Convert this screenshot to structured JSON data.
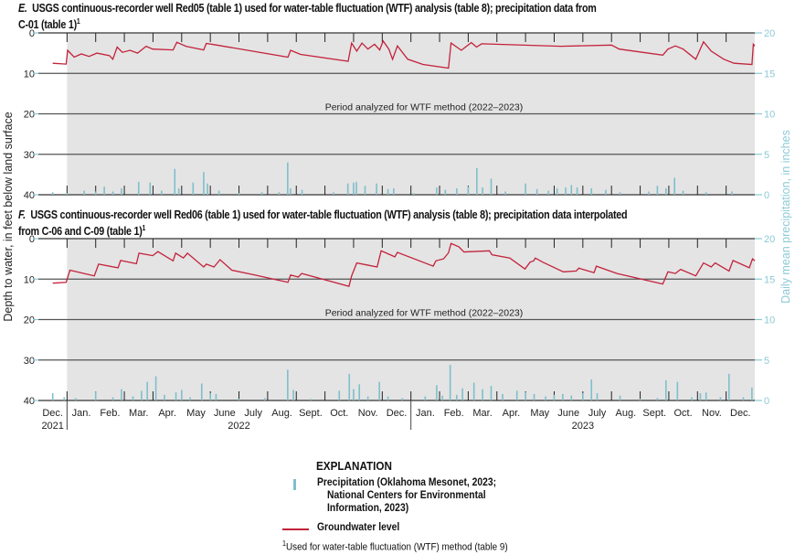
{
  "colors": {
    "groundwater": "#c3223b",
    "precip": "#7fbfcb",
    "shade": "#e4e4e4",
    "grid": "#555555",
    "axis_right": "#8ccad6"
  },
  "footnote_mark": "1",
  "shared": {
    "left_axis_label": "Depth to water, in feet below land surface",
    "right_axis_label": "Daily mean precipitation, in inches",
    "months": [
      "Dec.",
      "Jan.",
      "Feb.",
      "Mar.",
      "Apr.",
      "May",
      "June",
      "July",
      "Aug.",
      "Sept.",
      "Oct.",
      "Nov.",
      "Dec.",
      "Jan.",
      "Feb.",
      "Mar.",
      "Apr.",
      "May",
      "June",
      "July",
      "Aug.",
      "Sept.",
      "Oct.",
      "Nov.",
      "Dec."
    ],
    "years": [
      "2021",
      "2022",
      "2023"
    ],
    "x_unit": "months since Dec. 1, 2021",
    "xlim": [
      0,
      25
    ],
    "left_ticks": [
      "0",
      "10",
      "20",
      "30",
      "40"
    ],
    "right_ticks": [
      "20",
      "15",
      "10",
      "5",
      "0"
    ],
    "ylim_left": [
      0,
      40
    ],
    "ylim_right": [
      0,
      20
    ],
    "wtf_period_start": 1,
    "wtf_period_end": 25
  },
  "chart_data": [
    {
      "type": "line",
      "panel": "E.",
      "title_line1": "USGS continuous-recorder well Red05 (table 1) used for water-table fluctuation (WTF) analysis (table 8); precipitation data from",
      "title_line2": "C-01 (table 1)",
      "annotation": "Period analyzed for WTF method (2022–2023)",
      "groundwater": [
        [
          0.5,
          7.5
        ],
        [
          0.97,
          7.7
        ],
        [
          1.02,
          4.3
        ],
        [
          1.25,
          6.0
        ],
        [
          1.5,
          5.2
        ],
        [
          1.77,
          5.8
        ],
        [
          2.04,
          5.0
        ],
        [
          2.48,
          5.6
        ],
        [
          2.6,
          6.5
        ],
        [
          2.75,
          3.5
        ],
        [
          2.93,
          4.8
        ],
        [
          3.2,
          4.3
        ],
        [
          3.46,
          5.0
        ],
        [
          3.76,
          3.3
        ],
        [
          3.99,
          4.0
        ],
        [
          4.7,
          4.2
        ],
        [
          4.83,
          2.3
        ],
        [
          5.15,
          3.3
        ],
        [
          5.77,
          4.2
        ],
        [
          5.86,
          2.6
        ],
        [
          6.13,
          2.9
        ],
        [
          8.71,
          6.0
        ],
        [
          8.8,
          4.3
        ],
        [
          9.15,
          5.3
        ],
        [
          10.81,
          7.0
        ],
        [
          10.93,
          2.5
        ],
        [
          11.11,
          4.5
        ],
        [
          11.29,
          2.5
        ],
        [
          11.5,
          4.0
        ],
        [
          11.73,
          2.8
        ],
        [
          11.91,
          4.2
        ],
        [
          12.03,
          2.0
        ],
        [
          12.23,
          4.0
        ],
        [
          12.36,
          6.5
        ],
        [
          12.53,
          3.2
        ],
        [
          12.89,
          6.5
        ],
        [
          13.42,
          7.8
        ],
        [
          14.31,
          8.7
        ],
        [
          14.4,
          2.5
        ],
        [
          14.76,
          4.3
        ],
        [
          15.11,
          2.4
        ],
        [
          15.29,
          3.5
        ],
        [
          15.47,
          2.7
        ],
        [
          18.23,
          3.3
        ],
        [
          20.0,
          3.0
        ],
        [
          20.27,
          4.0
        ],
        [
          21.79,
          5.5
        ],
        [
          21.97,
          4.0
        ],
        [
          22.23,
          3.2
        ],
        [
          22.5,
          4.0
        ],
        [
          22.94,
          6.5
        ],
        [
          23.21,
          2.2
        ],
        [
          23.48,
          4.5
        ],
        [
          23.92,
          6.5
        ],
        [
          24.28,
          7.5
        ],
        [
          24.9,
          7.8
        ],
        [
          24.95,
          2.8
        ],
        [
          25.0,
          3.2
        ]
      ],
      "precipitation": [
        [
          0.5,
          0.3
        ],
        [
          1.0,
          0.2
        ],
        [
          1.6,
          0.5
        ],
        [
          2.0,
          0.4
        ],
        [
          2.3,
          1.0
        ],
        [
          2.6,
          0.4
        ],
        [
          2.9,
          0.8
        ],
        [
          3.5,
          1.6
        ],
        [
          3.9,
          1.5
        ],
        [
          4.3,
          0.5
        ],
        [
          4.76,
          3.2
        ],
        [
          4.9,
          0.8
        ],
        [
          5.4,
          1.5
        ],
        [
          5.77,
          2.8
        ],
        [
          5.9,
          1.4
        ],
        [
          6.3,
          0.5
        ],
        [
          7.0,
          0.2
        ],
        [
          7.8,
          0.3
        ],
        [
          8.4,
          0.3
        ],
        [
          8.7,
          4.0
        ],
        [
          8.8,
          0.8
        ],
        [
          9.2,
          0.6
        ],
        [
          10.3,
          0.3
        ],
        [
          10.8,
          1.4
        ],
        [
          11.0,
          1.5
        ],
        [
          11.1,
          1.6
        ],
        [
          11.4,
          1.1
        ],
        [
          11.8,
          1.4
        ],
        [
          12.2,
          0.7
        ],
        [
          12.4,
          0.8
        ],
        [
          13.1,
          0.2
        ],
        [
          13.9,
          0.9
        ],
        [
          14.2,
          0.6
        ],
        [
          14.6,
          0.8
        ],
        [
          15.0,
          1.0
        ],
        [
          15.3,
          3.3
        ],
        [
          15.5,
          0.9
        ],
        [
          15.8,
          2.0
        ],
        [
          16.3,
          0.4
        ],
        [
          17.0,
          1.4
        ],
        [
          17.4,
          0.7
        ],
        [
          17.8,
          0.5
        ],
        [
          18.1,
          0.8
        ],
        [
          18.4,
          0.9
        ],
        [
          18.6,
          1.2
        ],
        [
          18.8,
          0.9
        ],
        [
          19.3,
          0.8
        ],
        [
          19.8,
          0.6
        ],
        [
          20.3,
          0.3
        ],
        [
          21.3,
          0.4
        ],
        [
          21.6,
          1.1
        ],
        [
          21.9,
          0.8
        ],
        [
          22.2,
          2.1
        ],
        [
          22.5,
          0.5
        ],
        [
          23.3,
          0.3
        ],
        [
          24.2,
          0.4
        ]
      ]
    },
    {
      "type": "line",
      "panel": "F.",
      "title_line1": "USGS continuous-recorder well Red06 (table 1) used for water-table fluctuation (WTF) analysis (table 8); precipitation data interpolated",
      "title_line2": "from C-06 and C-09 (table 1)",
      "annotation": "Period analyzed for WTF method (2022–2023)",
      "groundwater": [
        [
          0.5,
          11.0
        ],
        [
          0.97,
          10.8
        ],
        [
          1.1,
          7.8
        ],
        [
          1.95,
          9.2
        ],
        [
          2.1,
          6.3
        ],
        [
          2.78,
          7.2
        ],
        [
          2.87,
          5.4
        ],
        [
          3.42,
          6.2
        ],
        [
          3.51,
          3.6
        ],
        [
          3.99,
          4.2
        ],
        [
          4.17,
          3.2
        ],
        [
          4.7,
          5.5
        ],
        [
          4.79,
          3.6
        ],
        [
          5.06,
          4.8
        ],
        [
          5.2,
          3.6
        ],
        [
          5.77,
          7.0
        ],
        [
          5.86,
          6.3
        ],
        [
          6.13,
          7.0
        ],
        [
          6.34,
          5.2
        ],
        [
          6.75,
          7.8
        ],
        [
          7.55,
          9.0
        ],
        [
          8.71,
          10.8
        ],
        [
          8.8,
          9.0
        ],
        [
          9.07,
          9.5
        ],
        [
          9.19,
          8.6
        ],
        [
          10.84,
          11.8
        ],
        [
          10.93,
          9.2
        ],
        [
          11.11,
          6.0
        ],
        [
          11.47,
          6.5
        ],
        [
          11.82,
          7.0
        ],
        [
          11.96,
          3.0
        ],
        [
          12.44,
          4.5
        ],
        [
          12.53,
          3.4
        ],
        [
          13.78,
          6.8
        ],
        [
          13.87,
          5.5
        ],
        [
          14.14,
          5.0
        ],
        [
          14.31,
          3.5
        ],
        [
          14.4,
          1.2
        ],
        [
          14.67,
          2.0
        ],
        [
          14.85,
          3.3
        ],
        [
          15.74,
          3.0
        ],
        [
          15.83,
          4.0
        ],
        [
          16.45,
          4.8
        ],
        [
          16.98,
          7.5
        ],
        [
          17.16,
          5.8
        ],
        [
          17.28,
          5.5
        ],
        [
          17.34,
          4.8
        ],
        [
          17.6,
          5.8
        ],
        [
          18.32,
          8.2
        ],
        [
          18.77,
          8.0
        ],
        [
          18.86,
          7.3
        ],
        [
          19.39,
          8.4
        ],
        [
          19.47,
          6.8
        ],
        [
          20.19,
          8.6
        ],
        [
          21.79,
          11.2
        ],
        [
          21.97,
          8.2
        ],
        [
          22.23,
          8.6
        ],
        [
          22.41,
          7.6
        ],
        [
          22.94,
          9.2
        ],
        [
          23.21,
          6.0
        ],
        [
          23.48,
          7.0
        ],
        [
          23.62,
          6.0
        ],
        [
          24.1,
          8.0
        ],
        [
          24.24,
          5.4
        ],
        [
          24.81,
          7.2
        ],
        [
          24.92,
          5.0
        ],
        [
          25.0,
          5.5
        ]
      ],
      "precipitation": [
        [
          0.5,
          0.9
        ],
        [
          0.9,
          0.4
        ],
        [
          1.3,
          0.3
        ],
        [
          2.0,
          1.1
        ],
        [
          2.6,
          0.4
        ],
        [
          2.9,
          1.4
        ],
        [
          3.3,
          0.5
        ],
        [
          3.6,
          1.2
        ],
        [
          3.8,
          2.3
        ],
        [
          4.1,
          3.0
        ],
        [
          4.4,
          0.7
        ],
        [
          4.8,
          1.0
        ],
        [
          5.0,
          1.3
        ],
        [
          5.3,
          0.4
        ],
        [
          5.7,
          2.1
        ],
        [
          6.0,
          0.9
        ],
        [
          6.2,
          0.8
        ],
        [
          7.0,
          0.2
        ],
        [
          7.9,
          0.3
        ],
        [
          8.7,
          3.8
        ],
        [
          8.9,
          1.3
        ],
        [
          9.5,
          0.2
        ],
        [
          10.5,
          1.2
        ],
        [
          10.85,
          3.3
        ],
        [
          11.0,
          1.4
        ],
        [
          11.2,
          2.0
        ],
        [
          11.5,
          0.5
        ],
        [
          11.9,
          2.3
        ],
        [
          12.2,
          0.5
        ],
        [
          12.7,
          0.3
        ],
        [
          13.5,
          0.5
        ],
        [
          13.9,
          1.9
        ],
        [
          14.1,
          0.6
        ],
        [
          14.37,
          4.4
        ],
        [
          14.6,
          0.7
        ],
        [
          14.8,
          1.5
        ],
        [
          15.2,
          2.2
        ],
        [
          15.5,
          1.4
        ],
        [
          15.8,
          1.8
        ],
        [
          16.2,
          0.8
        ],
        [
          16.7,
          1.2
        ],
        [
          17.0,
          1.0
        ],
        [
          17.3,
          0.8
        ],
        [
          17.7,
          0.5
        ],
        [
          18.0,
          0.7
        ],
        [
          18.3,
          0.8
        ],
        [
          18.6,
          0.6
        ],
        [
          19.0,
          0.9
        ],
        [
          19.3,
          2.6
        ],
        [
          19.5,
          0.9
        ],
        [
          20.3,
          0.6
        ],
        [
          21.0,
          0.2
        ],
        [
          21.6,
          0.3
        ],
        [
          21.9,
          2.5
        ],
        [
          22.3,
          2.3
        ],
        [
          22.8,
          0.4
        ],
        [
          23.1,
          0.9
        ],
        [
          23.3,
          1.0
        ],
        [
          23.8,
          0.4
        ],
        [
          24.1,
          3.3
        ],
        [
          24.6,
          0.4
        ],
        [
          24.9,
          1.6
        ]
      ]
    }
  ],
  "legend": {
    "title": "EXPLANATION",
    "precip_line1": "Precipitation (Oklahoma Mesonet, 2023;",
    "precip_line2": "National Centers for Environmental",
    "precip_line3": "Information, 2023)",
    "groundwater": "Groundwater level"
  },
  "footnote": "Used for water-table fluctuation (WTF) method (table 9)"
}
